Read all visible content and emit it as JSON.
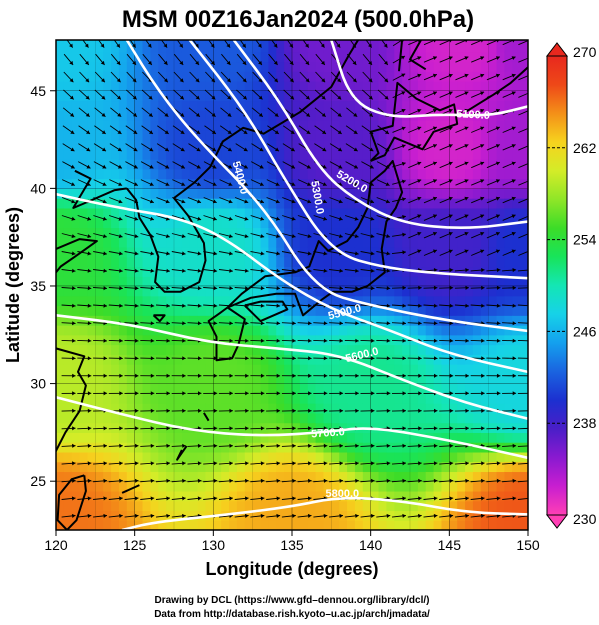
{
  "chart_data": {
    "type": "heatmap",
    "title": "MSM 00Z16Jan2024 (500.0hPa)",
    "xlabel": "Longitude (degrees)",
    "ylabel": "Latitude  (degrees)",
    "xlim": [
      120,
      150
    ],
    "ylim": [
      22.5,
      47.6
    ],
    "xticks": [
      120,
      125,
      130,
      135,
      140,
      145,
      150
    ],
    "yticks": [
      25,
      30,
      35,
      40,
      45
    ],
    "grid": true,
    "colorbar": {
      "ticks": [
        230,
        238,
        246,
        254,
        262,
        270
      ],
      "range": [
        230,
        270
      ],
      "colors": [
        "#ff3fb5",
        "#c81ed0",
        "#8a1ad0",
        "#4a1ec8",
        "#1c30d0",
        "#1a64e0",
        "#14a0ee",
        "#16d2e8",
        "#14e6b4",
        "#18e45a",
        "#3cdc28",
        "#90e628",
        "#d4ec28",
        "#f6d21e",
        "#f49018",
        "#ee4818",
        "#e8281e"
      ]
    },
    "temperature_field": [
      {
        "lon": 120,
        "lat": 47.5,
        "value": 247
      },
      {
        "lon": 130,
        "lat": 47.5,
        "value": 242
      },
      {
        "lon": 138,
        "lat": 47.5,
        "value": 236
      },
      {
        "lon": 146,
        "lat": 47.5,
        "value": 232
      },
      {
        "lon": 150,
        "lat": 47.5,
        "value": 234
      },
      {
        "lon": 120,
        "lat": 42,
        "value": 246
      },
      {
        "lon": 130,
        "lat": 42,
        "value": 241
      },
      {
        "lon": 138,
        "lat": 42,
        "value": 237
      },
      {
        "lon": 145,
        "lat": 42,
        "value": 232
      },
      {
        "lon": 150,
        "lat": 42,
        "value": 234
      },
      {
        "lon": 120,
        "lat": 37,
        "value": 254
      },
      {
        "lon": 130,
        "lat": 37,
        "value": 249
      },
      {
        "lon": 138,
        "lat": 37,
        "value": 240
      },
      {
        "lon": 145,
        "lat": 37,
        "value": 238
      },
      {
        "lon": 150,
        "lat": 37,
        "value": 240
      },
      {
        "lon": 120,
        "lat": 30,
        "value": 259
      },
      {
        "lon": 130,
        "lat": 30,
        "value": 256
      },
      {
        "lon": 140,
        "lat": 30,
        "value": 251
      },
      {
        "lon": 150,
        "lat": 30,
        "value": 248
      },
      {
        "lon": 120,
        "lat": 23,
        "value": 266
      },
      {
        "lon": 135,
        "lat": 23,
        "value": 264
      },
      {
        "lon": 150,
        "lat": 23,
        "value": 267
      }
    ],
    "contours": [
      {
        "label": "5100.0",
        "points": [
          [
            137.5,
            47.6
          ],
          [
            138.7,
            44.5
          ],
          [
            141.2,
            43.6
          ],
          [
            144.5,
            43.8
          ],
          [
            147.5,
            43.7
          ],
          [
            150,
            44.2
          ]
        ],
        "label_at": [
          146.5,
          43.6
        ],
        "angle": 3
      },
      {
        "label": "5200.0",
        "points": [
          [
            131.3,
            47.6
          ],
          [
            134.2,
            44.5
          ],
          [
            136.7,
            41
          ],
          [
            139,
            39.4
          ],
          [
            142,
            38.2
          ],
          [
            146,
            37.9
          ],
          [
            150,
            38.3
          ]
        ],
        "label_at": [
          138.7,
          40.2
        ],
        "angle": 30
      },
      {
        "label": "5300.0",
        "points": [
          [
            128.5,
            47.6
          ],
          [
            132,
            44
          ],
          [
            134.5,
            40.5
          ],
          [
            137.5,
            36.7
          ],
          [
            141,
            35.9
          ],
          [
            145,
            35.6
          ],
          [
            150,
            35.4
          ]
        ],
        "label_at": [
          136.4,
          39.5
        ],
        "angle": 80
      },
      {
        "label": "5400.0",
        "points": [
          [
            124.5,
            47.6
          ],
          [
            126.5,
            45
          ],
          [
            129,
            42.5
          ],
          [
            133.3,
            39
          ],
          [
            136.5,
            34.8
          ],
          [
            140,
            34
          ],
          [
            145,
            33.2
          ],
          [
            150,
            32.7
          ]
        ],
        "label_at": [
          131.5,
          40.5
        ],
        "angle": 75
      },
      {
        "label": "5500.0",
        "points": [
          [
            120,
            39.7
          ],
          [
            124,
            39
          ],
          [
            127.8,
            38.5
          ],
          [
            130.7,
            37.5
          ],
          [
            134.3,
            35.3
          ],
          [
            137.5,
            33.8
          ],
          [
            141,
            32.8
          ],
          [
            145,
            31.5
          ],
          [
            150,
            30.6
          ]
        ],
        "label_at": [
          138.4,
          33.5
        ],
        "angle": -15
      },
      {
        "label": "5600.0",
        "points": [
          [
            120,
            33.5
          ],
          [
            125,
            33
          ],
          [
            129.7,
            32.1
          ],
          [
            134.1,
            31.8
          ],
          [
            138,
            31.5
          ],
          [
            142,
            30.2
          ],
          [
            146,
            29
          ],
          [
            150,
            28.2
          ]
        ],
        "label_at": [
          139.5,
          31.3
        ],
        "angle": -14
      },
      {
        "label": "5700.0",
        "points": [
          [
            120,
            29.3
          ],
          [
            124.3,
            28.4
          ],
          [
            128.5,
            27.6
          ],
          [
            133,
            27.3
          ],
          [
            137,
            27.5
          ],
          [
            140,
            27.8
          ],
          [
            145,
            27.1
          ],
          [
            150,
            26.2
          ]
        ],
        "label_at": [
          137.3,
          27.3
        ],
        "angle": -4
      },
      {
        "label": "5800.0",
        "points": [
          [
            124.2,
            22.5
          ],
          [
            126.2,
            22.9
          ],
          [
            131,
            23.3
          ],
          [
            135,
            23.7
          ],
          [
            138,
            24.2
          ],
          [
            142,
            24
          ],
          [
            146,
            23.4
          ],
          [
            150,
            23.3
          ]
        ],
        "label_at": [
          138.2,
          24.2
        ],
        "angle": 0
      }
    ],
    "wind_flow": "westerly, curving cyclonically around a trough over 140E-147E, 40N-45N"
  },
  "credits": {
    "line1": "Drawing by DCL (https://www.gfd–dennou.org/library/dcl/)",
    "line2": "Data from http://database.rish.kyoto–u.ac.jp/arch/jmadata/"
  }
}
